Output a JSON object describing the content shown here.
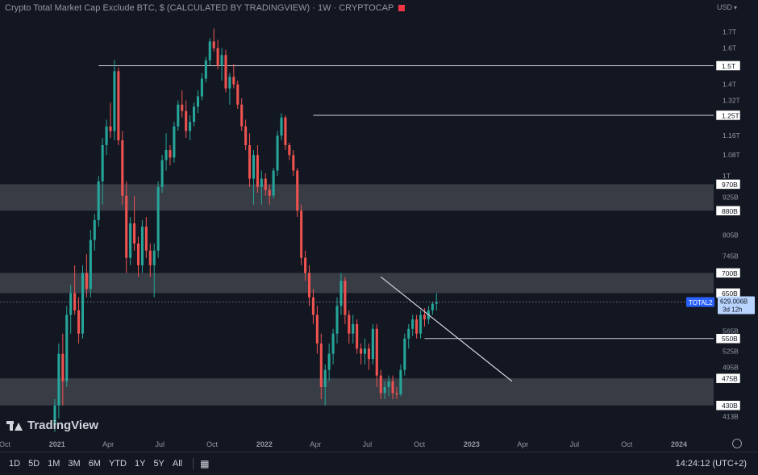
{
  "header": {
    "title": "Crypto Total Market Cap Exclude BTC, $ (CALCULATED BY TRADINGVIEW) · 1W · CRYPTOCAP",
    "currency": "USD"
  },
  "brand": {
    "name": "TradingView"
  },
  "toolbar": {
    "timeframes": [
      "1D",
      "5D",
      "1M",
      "3M",
      "6M",
      "YTD",
      "1Y",
      "5Y",
      "All"
    ],
    "clock": "14:24:12 (UTC+2)"
  },
  "colors": {
    "up": "#26a69a",
    "down": "#ef5350",
    "background": "#131722",
    "zone": "#ffffff"
  },
  "chart_data": {
    "type": "candlestick",
    "symbol": "TOTAL2",
    "y_scale": "log",
    "ylim": [
      385,
      1800
    ],
    "x_axis_ticks": [
      {
        "label": "Oct",
        "date": "2020-10-01"
      },
      {
        "label": "2021",
        "date": "2021-01-01"
      },
      {
        "label": "Apr",
        "date": "2021-04-01"
      },
      {
        "label": "Jul",
        "date": "2021-07-01"
      },
      {
        "label": "Oct",
        "date": "2021-10-01"
      },
      {
        "label": "2022",
        "date": "2022-01-01"
      },
      {
        "label": "Apr",
        "date": "2022-04-01"
      },
      {
        "label": "Jul",
        "date": "2022-07-01"
      },
      {
        "label": "Oct",
        "date": "2022-10-01"
      },
      {
        "label": "2023",
        "date": "2023-01-01"
      },
      {
        "label": "Apr",
        "date": "2023-04-01"
      },
      {
        "label": "Jul",
        "date": "2023-07-01"
      },
      {
        "label": "Oct",
        "date": "2023-10-01"
      },
      {
        "label": "2024",
        "date": "2024-01-01"
      }
    ],
    "y_axis_ticks": [
      {
        "label": "1.7T",
        "value": 1700
      },
      {
        "label": "1.6T",
        "value": 1600
      },
      {
        "label": "1.4T",
        "value": 1400
      },
      {
        "label": "1.32T",
        "value": 1320
      },
      {
        "label": "1.16T",
        "value": 1160
      },
      {
        "label": "1.08T",
        "value": 1080
      },
      {
        "label": "1T",
        "value": 1000
      },
      {
        "label": "925B",
        "value": 925
      },
      {
        "label": "805B",
        "value": 805
      },
      {
        "label": "745B",
        "value": 745
      },
      {
        "label": "565B",
        "value": 565
      },
      {
        "label": "525B",
        "value": 525
      },
      {
        "label": "495B",
        "value": 495
      },
      {
        "label": "413B",
        "value": 413
      }
    ],
    "level_labels": [
      {
        "label": "1.5T",
        "value": 1500
      },
      {
        "label": "1.25T",
        "value": 1250
      },
      {
        "label": "970B",
        "value": 970
      },
      {
        "label": "880B",
        "value": 880
      },
      {
        "label": "700B",
        "value": 700
      },
      {
        "label": "650B",
        "value": 650
      },
      {
        "label": "550B",
        "value": 550
      },
      {
        "label": "475B",
        "value": 475
      },
      {
        "label": "430B",
        "value": 430
      }
    ],
    "zones": [
      {
        "low": 880,
        "high": 970
      },
      {
        "low": 650,
        "high": 700
      },
      {
        "low": 430,
        "high": 475
      }
    ],
    "horizontal_lines": [
      {
        "value": 1500,
        "from": "2021-03-15"
      },
      {
        "value": 1250,
        "from": "2022-03-28"
      },
      {
        "value": 550,
        "from": "2022-10-10"
      }
    ],
    "trendline": {
      "from": {
        "date": "2022-07-25",
        "value": 690
      },
      "to": {
        "date": "2023-03-13",
        "value": 470
      }
    },
    "price_tag": {
      "label": "TOTAL2",
      "value": 629.006,
      "value_label": "629.006B",
      "countdown": "3d 12h"
    },
    "candles_start": "2020-12-28",
    "candle_interval_days": 7,
    "ohlc": [
      [
        400,
        440,
        390,
        430
      ],
      [
        430,
        540,
        410,
        520
      ],
      [
        520,
        560,
        430,
        470
      ],
      [
        470,
        620,
        460,
        600
      ],
      [
        600,
        670,
        560,
        650
      ],
      [
        650,
        720,
        600,
        610
      ],
      [
        610,
        640,
        540,
        560
      ],
      [
        560,
        720,
        550,
        700
      ],
      [
        700,
        750,
        640,
        660
      ],
      [
        660,
        820,
        640,
        790
      ],
      [
        790,
        870,
        760,
        850
      ],
      [
        850,
        1000,
        830,
        980
      ],
      [
        980,
        1150,
        900,
        1120
      ],
      [
        1120,
        1230,
        1080,
        1200
      ],
      [
        1200,
        1310,
        1150,
        1180
      ],
      [
        1180,
        1530,
        1140,
        1470
      ],
      [
        1470,
        1490,
        1120,
        1140
      ],
      [
        1140,
        1180,
        900,
        930
      ],
      [
        930,
        980,
        700,
        740
      ],
      [
        740,
        860,
        720,
        840
      ],
      [
        840,
        930,
        760,
        780
      ],
      [
        780,
        800,
        690,
        720
      ],
      [
        720,
        850,
        700,
        830
      ],
      [
        830,
        860,
        740,
        760
      ],
      [
        760,
        780,
        690,
        720
      ],
      [
        720,
        780,
        640,
        760
      ],
      [
        760,
        980,
        740,
        960
      ],
      [
        960,
        1080,
        940,
        1060
      ],
      [
        1060,
        1170,
        1020,
        1100
      ],
      [
        1100,
        1120,
        1040,
        1070
      ],
      [
        1070,
        1220,
        1050,
        1200
      ],
      [
        1200,
        1320,
        1180,
        1300
      ],
      [
        1300,
        1370,
        1240,
        1270
      ],
      [
        1270,
        1320,
        1150,
        1180
      ],
      [
        1180,
        1250,
        1140,
        1220
      ],
      [
        1220,
        1310,
        1200,
        1290
      ],
      [
        1290,
        1370,
        1260,
        1340
      ],
      [
        1340,
        1460,
        1320,
        1430
      ],
      [
        1430,
        1550,
        1410,
        1530
      ],
      [
        1530,
        1660,
        1500,
        1640
      ],
      [
        1640,
        1720,
        1580,
        1600
      ],
      [
        1600,
        1650,
        1480,
        1500
      ],
      [
        1500,
        1600,
        1420,
        1560
      ],
      [
        1560,
        1590,
        1360,
        1380
      ],
      [
        1380,
        1460,
        1300,
        1440
      ],
      [
        1440,
        1510,
        1380,
        1400
      ],
      [
        1400,
        1420,
        1280,
        1300
      ],
      [
        1300,
        1330,
        1180,
        1200
      ],
      [
        1200,
        1230,
        1100,
        1120
      ],
      [
        1120,
        1170,
        960,
        990
      ],
      [
        990,
        1100,
        900,
        1080
      ],
      [
        1080,
        1120,
        940,
        960
      ],
      [
        960,
        1020,
        900,
        990
      ],
      [
        990,
        1010,
        930,
        950
      ],
      [
        950,
        970,
        900,
        930
      ],
      [
        930,
        1030,
        920,
        1020
      ],
      [
        1020,
        1180,
        1000,
        1160
      ],
      [
        1160,
        1260,
        1140,
        1240
      ],
      [
        1240,
        1250,
        1100,
        1120
      ],
      [
        1120,
        1130,
        1060,
        1080
      ],
      [
        1080,
        1100,
        1000,
        1020
      ],
      [
        1020,
        1030,
        860,
        880
      ],
      [
        880,
        900,
        720,
        740
      ],
      [
        740,
        760,
        680,
        700
      ],
      [
        700,
        720,
        620,
        640
      ],
      [
        640,
        660,
        580,
        600
      ],
      [
        600,
        620,
        520,
        540
      ],
      [
        540,
        560,
        440,
        460
      ],
      [
        460,
        500,
        430,
        490
      ],
      [
        490,
        540,
        470,
        520
      ],
      [
        520,
        570,
        500,
        560
      ],
      [
        560,
        640,
        540,
        620
      ],
      [
        620,
        700,
        600,
        680
      ],
      [
        680,
        690,
        580,
        600
      ],
      [
        600,
        610,
        540,
        560
      ],
      [
        560,
        600,
        540,
        580
      ],
      [
        580,
        590,
        520,
        530
      ],
      [
        530,
        540,
        500,
        520
      ],
      [
        520,
        550,
        500,
        530
      ],
      [
        530,
        540,
        490,
        510
      ],
      [
        510,
        580,
        500,
        570
      ],
      [
        570,
        580,
        460,
        480
      ],
      [
        480,
        490,
        440,
        450
      ],
      [
        450,
        470,
        440,
        460
      ],
      [
        460,
        480,
        445,
        470
      ],
      [
        470,
        480,
        440,
        450
      ],
      [
        450,
        460,
        440,
        448
      ],
      [
        448,
        500,
        445,
        490
      ],
      [
        490,
        560,
        480,
        550
      ],
      [
        550,
        580,
        530,
        570
      ],
      [
        570,
        600,
        555,
        590
      ],
      [
        590,
        600,
        550,
        560
      ],
      [
        560,
        610,
        550,
        600
      ],
      [
        600,
        615,
        575,
        590
      ],
      [
        590,
        620,
        580,
        610
      ],
      [
        610,
        630,
        600,
        625
      ],
      [
        625,
        650,
        610,
        629
      ]
    ]
  }
}
